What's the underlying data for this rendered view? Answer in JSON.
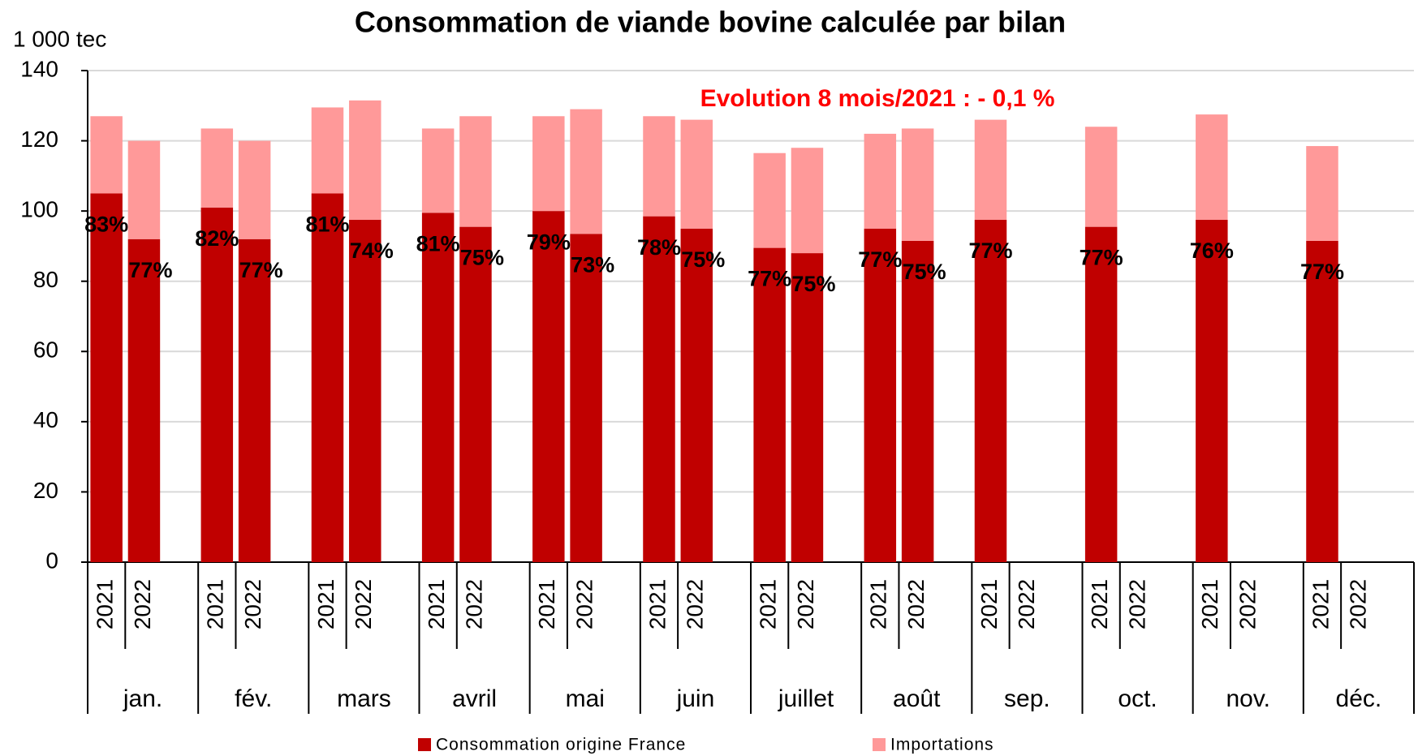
{
  "chart_data": {
    "type": "stacked_bar",
    "title": "Consommation de viande bovine calculée par bilan",
    "y_axis_label": "1 000 tec",
    "annotation": "Evolution 8 mois/2021 : - 0,1 %",
    "groups": [
      "jan.",
      "fév.",
      "mars",
      "avril",
      "mai",
      "juin",
      "juillet",
      "août",
      "sep.",
      "oct.",
      "nov.",
      "déc."
    ],
    "categories": [
      "2021",
      "2022",
      "2021",
      "2022",
      "2021",
      "2022",
      "2021",
      "2022",
      "2021",
      "2022",
      "2021",
      "2022",
      "2021",
      "2022",
      "2021",
      "2022",
      "2021",
      "2022",
      "2021",
      "2022",
      "2021",
      "2022",
      "2021",
      "2022"
    ],
    "series": [
      {
        "name": "Consommation origine France",
        "color": "#c00000",
        "values": [
          105,
          92,
          101,
          92,
          105,
          97.5,
          99.5,
          95.5,
          100,
          93.5,
          98.5,
          95,
          89.5,
          88,
          95,
          91.5,
          97.5,
          null,
          95.5,
          null,
          97.5,
          null,
          91.5,
          null
        ]
      },
      {
        "name": "Importations",
        "color": "#ff9999",
        "values": [
          22,
          28,
          22.5,
          28,
          24.5,
          34,
          24,
          31.5,
          27,
          35.5,
          28.5,
          31,
          27,
          30,
          27,
          32,
          28.5,
          null,
          28.5,
          null,
          30,
          null,
          27,
          null
        ]
      }
    ],
    "share_labels": [
      "83%",
      "77%",
      "82%",
      "77%",
      "81%",
      "74%",
      "81%",
      "75%",
      "79%",
      "73%",
      "78%",
      "75%",
      "77%",
      "75%",
      "77%",
      "75%",
      "77%",
      null,
      "77%",
      null,
      "76%",
      null,
      "77%",
      null
    ],
    "ylim": [
      0,
      140
    ],
    "yticks": [
      0,
      20,
      40,
      60,
      80,
      100,
      120,
      140
    ],
    "grid": true
  }
}
